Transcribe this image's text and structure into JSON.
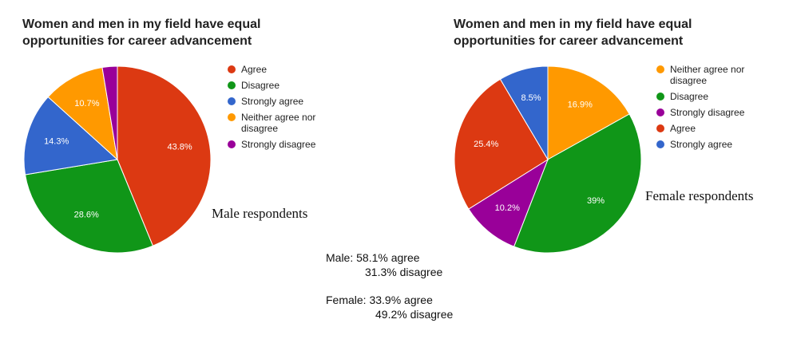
{
  "chart_data": [
    {
      "type": "pie",
      "title": "Women and men in my field have equal opportunities for career advancement",
      "annotation": "Male respondents",
      "categories": [
        "Agree",
        "Disagree",
        "Strongly agree",
        "Neither agree nor disagree",
        "Strongly disagree"
      ],
      "values": [
        43.8,
        28.6,
        14.3,
        10.7,
        2.6
      ],
      "value_labels": [
        "43.8%",
        "28.6%",
        "14.3%",
        "10.7%",
        null
      ],
      "colors": [
        "#dc3912",
        "#109618",
        "#3366cc",
        "#ff9900",
        "#990099"
      ]
    },
    {
      "type": "pie",
      "title": "Women and men in my field have equal opportunities for career advancement",
      "annotation": "Female respondents",
      "categories": [
        "Neither agree nor disagree",
        "Disagree",
        "Strongly disagree",
        "Agree",
        "Strongly agree"
      ],
      "values": [
        16.9,
        39,
        10.2,
        25.4,
        8.5
      ],
      "value_labels": [
        "16.9%",
        "39%",
        "10.2%",
        "25.4%",
        "8.5%"
      ],
      "colors": [
        "#ff9900",
        "#109618",
        "#990099",
        "#dc3912",
        "#3366cc"
      ]
    }
  ],
  "summary": {
    "male": [
      "Male: 58.1% agree",
      "31.3% disagree"
    ],
    "female": [
      "Female: 33.9% agree",
      "49.2% disagree"
    ]
  }
}
